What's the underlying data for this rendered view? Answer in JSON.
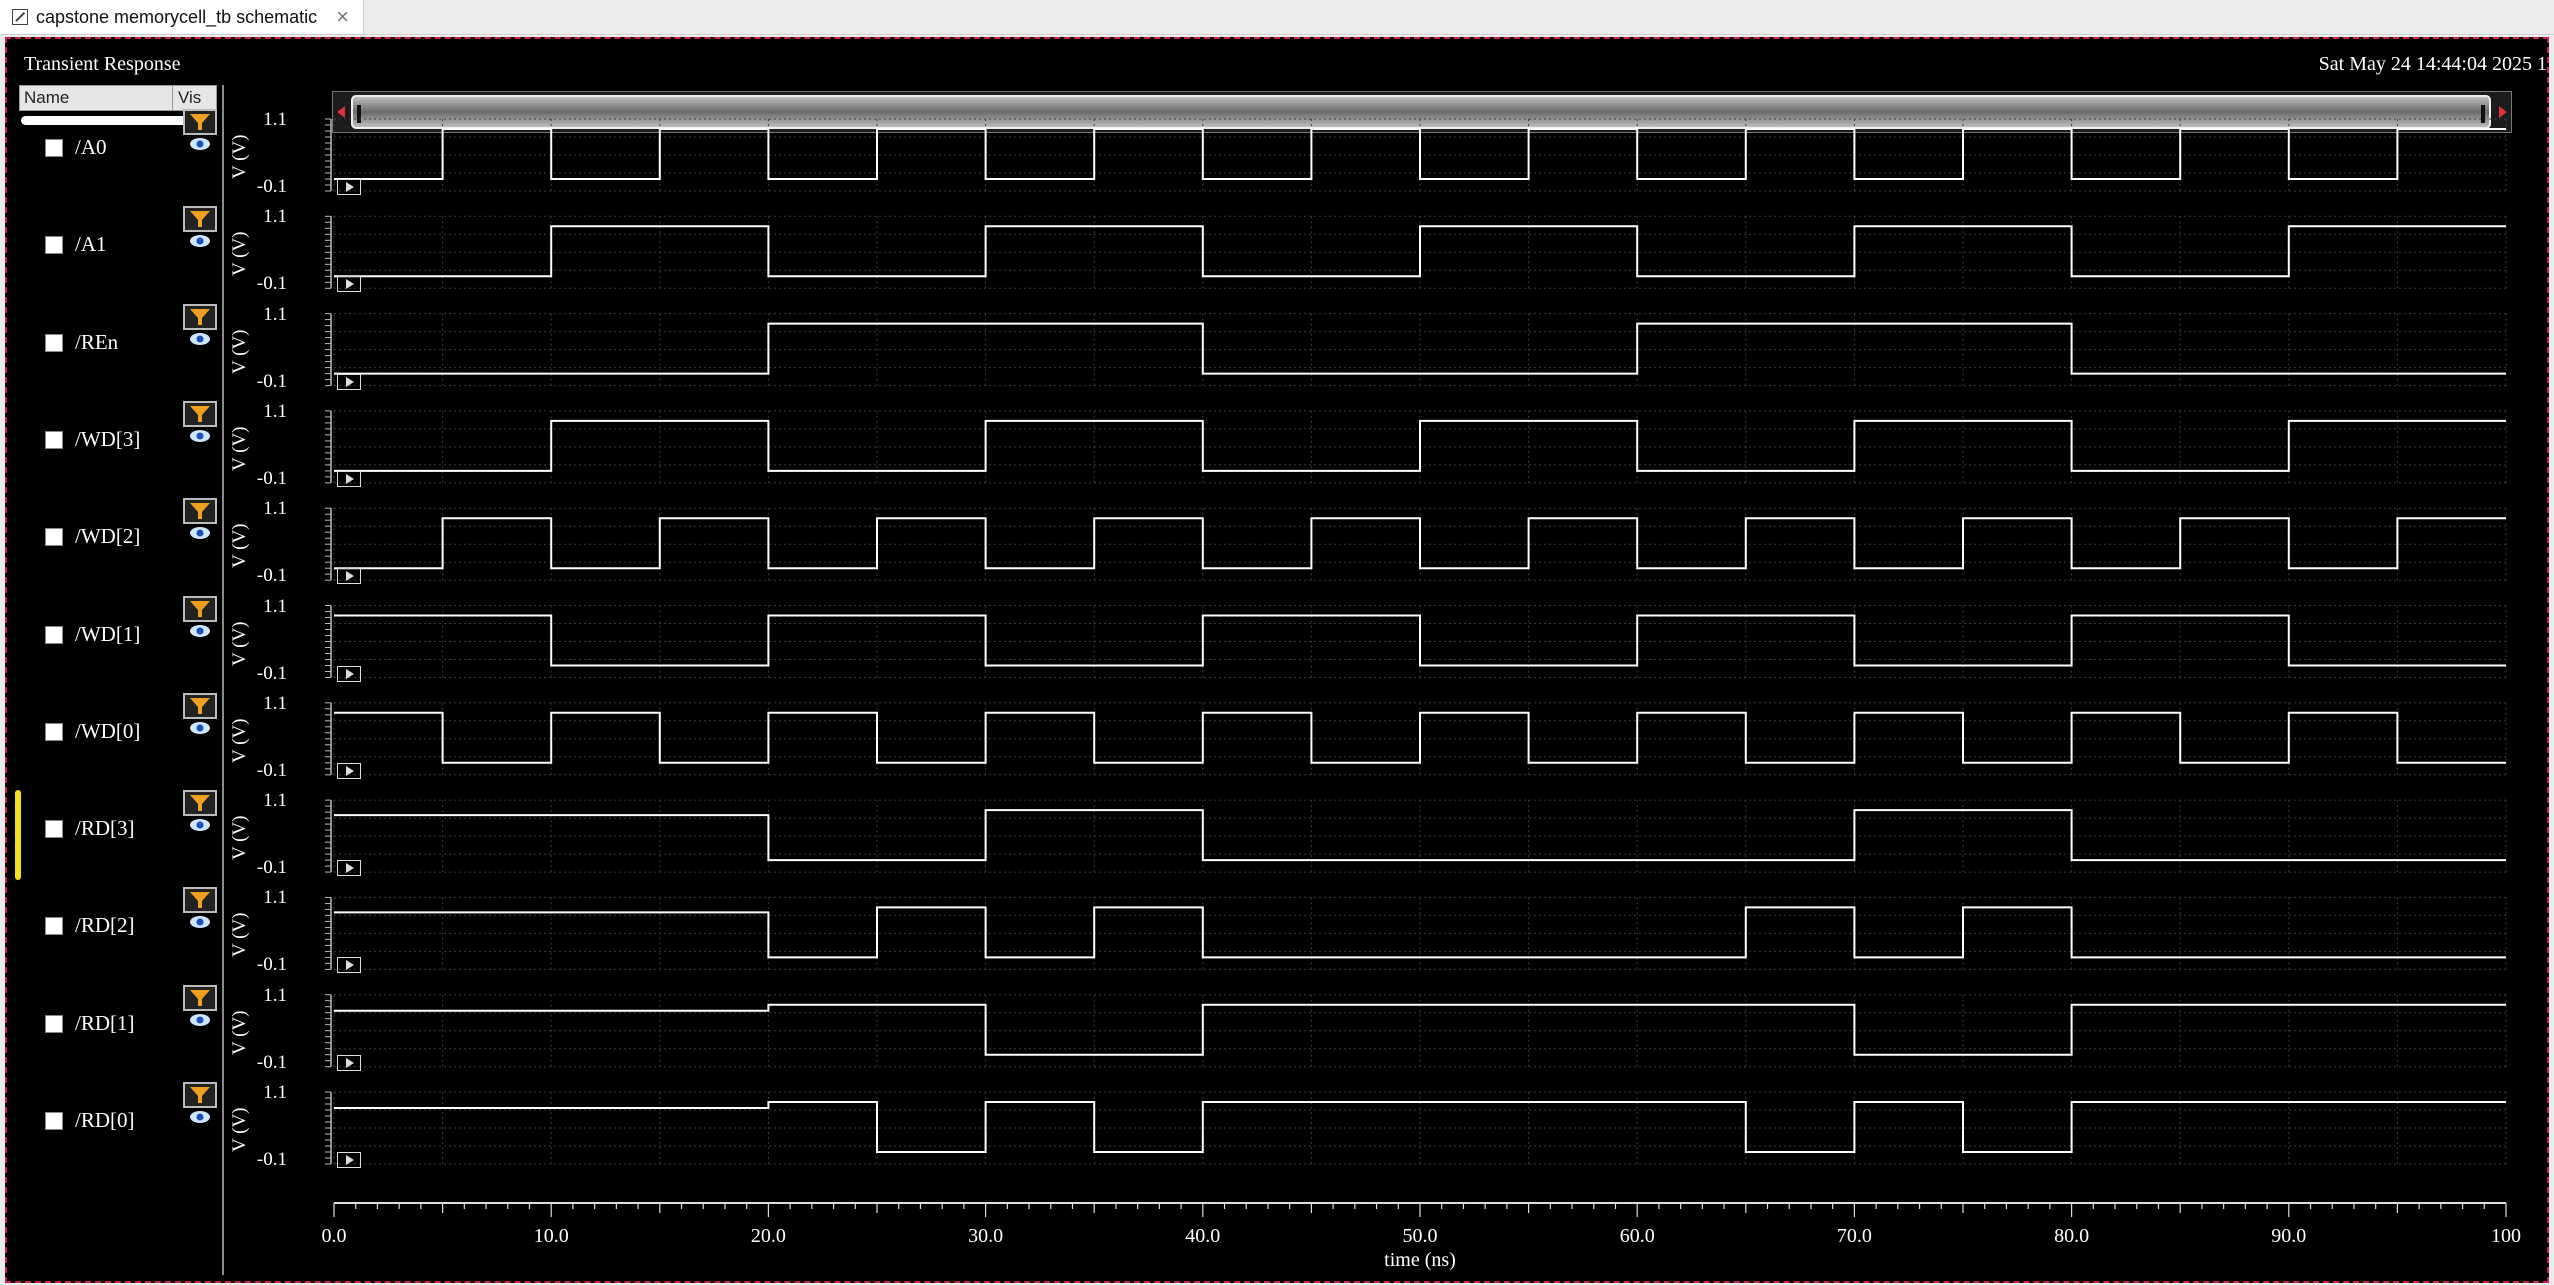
{
  "tab": {
    "title": "capstone memorycell_tb schematic",
    "close": "×"
  },
  "window": {
    "title": "Transient Response",
    "date": "Sat May 24 14:44:04 2025  1"
  },
  "sidebar": {
    "col_name": "Name",
    "col_vis": "Vis"
  },
  "signals": [
    {
      "name": "/A0"
    },
    {
      "name": "/A1"
    },
    {
      "name": "/REn"
    },
    {
      "name": "/WD[3]"
    },
    {
      "name": "/WD[2]"
    },
    {
      "name": "/WD[1]"
    },
    {
      "name": "/WD[0]"
    },
    {
      "name": "/RD[3]",
      "selected": true
    },
    {
      "name": "/RD[2]"
    },
    {
      "name": "/RD[1]"
    },
    {
      "name": "/RD[0]"
    }
  ],
  "chart_data": {
    "type": "line",
    "xlabel": "time (ns)",
    "xlim": [
      0,
      100
    ],
    "x_ticks": [
      "0.0",
      "10.0",
      "20.0",
      "30.0",
      "40.0",
      "50.0",
      "60.0",
      "70.0",
      "80.0",
      "90.0",
      "100"
    ],
    "ylabel": "V (V)",
    "ylim": [
      -0.1,
      1.1
    ],
    "y_ticks": [
      "1.1",
      "-0.1"
    ],
    "grid": true,
    "series": [
      {
        "name": "/A0",
        "points": [
          [
            0,
            0
          ],
          [
            5,
            0
          ],
          [
            5,
            1
          ],
          [
            10,
            1
          ],
          [
            10,
            0
          ],
          [
            15,
            0
          ],
          [
            15,
            1
          ],
          [
            20,
            1
          ],
          [
            20,
            0
          ],
          [
            25,
            0
          ],
          [
            25,
            1
          ],
          [
            30,
            1
          ],
          [
            30,
            0
          ],
          [
            35,
            0
          ],
          [
            35,
            1
          ],
          [
            40,
            1
          ],
          [
            40,
            0
          ],
          [
            45,
            0
          ],
          [
            45,
            1
          ],
          [
            50,
            1
          ],
          [
            50,
            0
          ],
          [
            55,
            0
          ],
          [
            55,
            1
          ],
          [
            60,
            1
          ],
          [
            60,
            0
          ],
          [
            65,
            0
          ],
          [
            65,
            1
          ],
          [
            70,
            1
          ],
          [
            70,
            0
          ],
          [
            75,
            0
          ],
          [
            75,
            1
          ],
          [
            80,
            1
          ],
          [
            80,
            0
          ],
          [
            85,
            0
          ],
          [
            85,
            1
          ],
          [
            90,
            1
          ],
          [
            90,
            0
          ],
          [
            95,
            0
          ],
          [
            95,
            1
          ],
          [
            100,
            1
          ]
        ]
      },
      {
        "name": "/A1",
        "points": [
          [
            0,
            0
          ],
          [
            10,
            0
          ],
          [
            10,
            1
          ],
          [
            20,
            1
          ],
          [
            20,
            0
          ],
          [
            30,
            0
          ],
          [
            30,
            1
          ],
          [
            40,
            1
          ],
          [
            40,
            0
          ],
          [
            50,
            0
          ],
          [
            50,
            1
          ],
          [
            60,
            1
          ],
          [
            60,
            0
          ],
          [
            70,
            0
          ],
          [
            70,
            1
          ],
          [
            80,
            1
          ],
          [
            80,
            0
          ],
          [
            90,
            0
          ],
          [
            90,
            1
          ],
          [
            100,
            1
          ]
        ]
      },
      {
        "name": "/REn",
        "points": [
          [
            0,
            0
          ],
          [
            20,
            0
          ],
          [
            20,
            1
          ],
          [
            40,
            1
          ],
          [
            40,
            0
          ],
          [
            60,
            0
          ],
          [
            60,
            1
          ],
          [
            80,
            1
          ],
          [
            80,
            0
          ],
          [
            100,
            0
          ]
        ]
      },
      {
        "name": "/WD[3]",
        "points": [
          [
            0,
            0
          ],
          [
            10,
            0
          ],
          [
            10,
            1
          ],
          [
            20,
            1
          ],
          [
            20,
            0
          ],
          [
            30,
            0
          ],
          [
            30,
            1
          ],
          [
            40,
            1
          ],
          [
            40,
            0
          ],
          [
            50,
            0
          ],
          [
            50,
            1
          ],
          [
            60,
            1
          ],
          [
            60,
            0
          ],
          [
            70,
            0
          ],
          [
            70,
            1
          ],
          [
            80,
            1
          ],
          [
            80,
            0
          ],
          [
            90,
            0
          ],
          [
            90,
            1
          ],
          [
            100,
            1
          ]
        ]
      },
      {
        "name": "/WD[2]",
        "points": [
          [
            0,
            0
          ],
          [
            5,
            0
          ],
          [
            5,
            1
          ],
          [
            10,
            1
          ],
          [
            10,
            0
          ],
          [
            15,
            0
          ],
          [
            15,
            1
          ],
          [
            20,
            1
          ],
          [
            20,
            0
          ],
          [
            25,
            0
          ],
          [
            25,
            1
          ],
          [
            30,
            1
          ],
          [
            30,
            0
          ],
          [
            35,
            0
          ],
          [
            35,
            1
          ],
          [
            40,
            1
          ],
          [
            40,
            0
          ],
          [
            45,
            0
          ],
          [
            45,
            1
          ],
          [
            50,
            1
          ],
          [
            50,
            0
          ],
          [
            55,
            0
          ],
          [
            55,
            1
          ],
          [
            60,
            1
          ],
          [
            60,
            0
          ],
          [
            65,
            0
          ],
          [
            65,
            1
          ],
          [
            70,
            1
          ],
          [
            70,
            0
          ],
          [
            75,
            0
          ],
          [
            75,
            1
          ],
          [
            80,
            1
          ],
          [
            80,
            0
          ],
          [
            85,
            0
          ],
          [
            85,
            1
          ],
          [
            90,
            1
          ],
          [
            90,
            0
          ],
          [
            95,
            0
          ],
          [
            95,
            1
          ],
          [
            100,
            1
          ]
        ]
      },
      {
        "name": "/WD[1]",
        "points": [
          [
            0,
            1
          ],
          [
            10,
            1
          ],
          [
            10,
            0
          ],
          [
            20,
            0
          ],
          [
            20,
            1
          ],
          [
            30,
            1
          ],
          [
            30,
            0
          ],
          [
            40,
            0
          ],
          [
            40,
            1
          ],
          [
            50,
            1
          ],
          [
            50,
            0
          ],
          [
            60,
            0
          ],
          [
            60,
            1
          ],
          [
            70,
            1
          ],
          [
            70,
            0
          ],
          [
            80,
            0
          ],
          [
            80,
            1
          ],
          [
            90,
            1
          ],
          [
            90,
            0
          ],
          [
            100,
            0
          ]
        ]
      },
      {
        "name": "/WD[0]",
        "points": [
          [
            0,
            1
          ],
          [
            5,
            1
          ],
          [
            5,
            0
          ],
          [
            10,
            0
          ],
          [
            10,
            1
          ],
          [
            15,
            1
          ],
          [
            15,
            0
          ],
          [
            20,
            0
          ],
          [
            20,
            1
          ],
          [
            25,
            1
          ],
          [
            25,
            0
          ],
          [
            30,
            0
          ],
          [
            30,
            1
          ],
          [
            35,
            1
          ],
          [
            35,
            0
          ],
          [
            40,
            0
          ],
          [
            40,
            1
          ],
          [
            45,
            1
          ],
          [
            45,
            0
          ],
          [
            50,
            0
          ],
          [
            50,
            1
          ],
          [
            55,
            1
          ],
          [
            55,
            0
          ],
          [
            60,
            0
          ],
          [
            60,
            1
          ],
          [
            65,
            1
          ],
          [
            65,
            0
          ],
          [
            70,
            0
          ],
          [
            70,
            1
          ],
          [
            75,
            1
          ],
          [
            75,
            0
          ],
          [
            80,
            0
          ],
          [
            80,
            1
          ],
          [
            85,
            1
          ],
          [
            85,
            0
          ],
          [
            90,
            0
          ],
          [
            90,
            1
          ],
          [
            95,
            1
          ],
          [
            95,
            0
          ],
          [
            100,
            0
          ]
        ]
      },
      {
        "name": "/RD[3]",
        "points": [
          [
            0,
            0.9
          ],
          [
            20,
            0.9
          ],
          [
            20,
            0
          ],
          [
            30,
            0
          ],
          [
            30,
            1
          ],
          [
            40,
            1
          ],
          [
            40,
            0
          ],
          [
            70,
            0
          ],
          [
            70,
            1
          ],
          [
            80,
            1
          ],
          [
            80,
            0
          ],
          [
            100,
            0
          ]
        ]
      },
      {
        "name": "/RD[2]",
        "points": [
          [
            0,
            0.9
          ],
          [
            20,
            0.9
          ],
          [
            20,
            0
          ],
          [
            25,
            0
          ],
          [
            25,
            1
          ],
          [
            30,
            1
          ],
          [
            30,
            0
          ],
          [
            35,
            0
          ],
          [
            35,
            1
          ],
          [
            40,
            1
          ],
          [
            40,
            0
          ],
          [
            65,
            0
          ],
          [
            65,
            1
          ],
          [
            70,
            1
          ],
          [
            70,
            0
          ],
          [
            75,
            0
          ],
          [
            75,
            1
          ],
          [
            80,
            1
          ],
          [
            80,
            0
          ],
          [
            100,
            0
          ]
        ]
      },
      {
        "name": "/RD[1]",
        "points": [
          [
            0,
            0.88
          ],
          [
            20,
            0.88
          ],
          [
            20,
            1
          ],
          [
            30,
            1
          ],
          [
            30,
            0
          ],
          [
            40,
            0
          ],
          [
            40,
            1
          ],
          [
            70,
            1
          ],
          [
            70,
            0
          ],
          [
            80,
            0
          ],
          [
            80,
            1
          ],
          [
            100,
            1
          ]
        ]
      },
      {
        "name": "/RD[0]",
        "points": [
          [
            0,
            0.88
          ],
          [
            20,
            0.88
          ],
          [
            20,
            1
          ],
          [
            25,
            1
          ],
          [
            25,
            0
          ],
          [
            30,
            0
          ],
          [
            30,
            1
          ],
          [
            35,
            1
          ],
          [
            35,
            0
          ],
          [
            40,
            0
          ],
          [
            40,
            1
          ],
          [
            65,
            1
          ],
          [
            65,
            0
          ],
          [
            70,
            0
          ],
          [
            70,
            1
          ],
          [
            75,
            1
          ],
          [
            75,
            0
          ],
          [
            80,
            0
          ],
          [
            80,
            1
          ],
          [
            100,
            1
          ]
        ]
      }
    ]
  }
}
